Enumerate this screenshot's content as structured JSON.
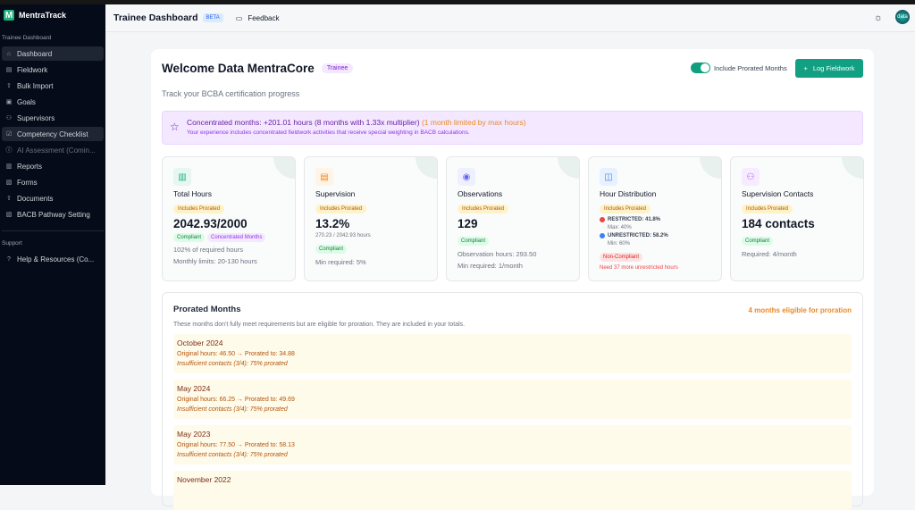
{
  "app": {
    "name": "MentraTrack",
    "logo_letter": "M"
  },
  "sidebar": {
    "section_main": "Trainee Dashboard",
    "items": [
      {
        "label": "Dashboard",
        "icon": "home-icon"
      },
      {
        "label": "Fieldwork",
        "icon": "clipboard-icon"
      },
      {
        "label": "Bulk Import",
        "icon": "upload-icon"
      },
      {
        "label": "Goals",
        "icon": "goal-icon"
      },
      {
        "label": "Supervisors",
        "icon": "users-icon"
      },
      {
        "label": "Competency Checklist",
        "icon": "checklist-icon"
      },
      {
        "label": "AI Assessment (Comin...",
        "icon": "info-icon"
      },
      {
        "label": "Reports",
        "icon": "chart-icon"
      },
      {
        "label": "Forms",
        "icon": "file-icon"
      },
      {
        "label": "Documents",
        "icon": "upload-icon"
      },
      {
        "label": "BACB Pathway Setting",
        "icon": "file-icon"
      }
    ],
    "section_support": "Support",
    "support_items": [
      {
        "label": "Help & Resources (Co...",
        "icon": "help-icon"
      }
    ]
  },
  "header": {
    "title": "Trainee Dashboard",
    "badge": "BETA",
    "feedback": "Feedback",
    "avatar_text": "data"
  },
  "welcome": {
    "title": "Welcome Data MentraCore",
    "role": "Trainee",
    "subtitle": "Track your BCBA certification progress",
    "toggle_label": "Include Prorated Months",
    "toggle_on": true,
    "log_button": "Log Fieldwork"
  },
  "banner": {
    "main": "Concentrated months: +201.01 hours (8 months with 1.33x multiplier)",
    "limited": "(1 month limited by max hours)",
    "sub": "Your experience includes concentrated fieldwork activities that receive special weighting in BACB calculations."
  },
  "cards": {
    "total": {
      "title": "Total Hours",
      "prorated": "Includes Prorated",
      "value": "2042.93/2000",
      "status": "Compliant",
      "tag": "Concentrated Months",
      "line1": "102% of required hours",
      "line2": "Monthly limits: 20-130 hours"
    },
    "supervision": {
      "title": "Supervision",
      "prorated": "Includes Prorated",
      "value": "13.2%",
      "detail": "270.23 / 2042.93 hours",
      "status": "Compliant",
      "line1": "Min required: 5%"
    },
    "observations": {
      "title": "Observations",
      "prorated": "Includes Prorated",
      "value": "129",
      "status": "Compliant",
      "line1": "Observation hours: 293.50",
      "line2": "Min required: 1/month"
    },
    "distribution": {
      "title": "Hour Distribution",
      "prorated": "Includes Prorated",
      "restricted": "RESTRICTED: 41.8%",
      "restricted_limit": "Max: 40%",
      "unrestricted": "UNRESTRICTED: 58.2%",
      "unrestricted_limit": "Min: 60%",
      "status": "Non-Compliant",
      "need": "Need 37 more unrestricted hours"
    },
    "contacts": {
      "title": "Supervision Contacts",
      "prorated": "Includes Prorated",
      "value": "184 contacts",
      "status": "Compliant",
      "line1": "Required: 4/month"
    }
  },
  "prorated": {
    "title": "Prorated Months",
    "eligible": "4 months eligible for proration",
    "description": "These months don't fully meet requirements but are eligible for proration. They are included in your totals.",
    "months": [
      {
        "name": "October 2024",
        "hours": "Original hours: 46.50 → Prorated to: 34.88",
        "note": "Insufficient contacts (3/4): 75% prorated"
      },
      {
        "name": "May 2024",
        "hours": "Original hours: 66.25 → Prorated to: 49.69",
        "note": "Insufficient contacts (3/4): 75% prorated"
      },
      {
        "name": "May 2023",
        "hours": "Original hours: 77.50 → Prorated to: 58.13",
        "note": "Insufficient contacts (3/4): 75% prorated"
      },
      {
        "name": "November 2022"
      }
    ]
  },
  "colors": {
    "accent": "#12a083",
    "sidebar": "#050b18",
    "restricted": "#ef4444",
    "unrestricted": "#3b82f6"
  }
}
